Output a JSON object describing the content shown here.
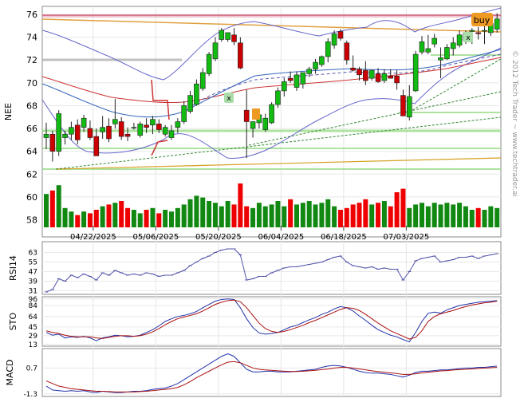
{
  "chart_data": {
    "type": "candlestick",
    "symbol": "NEE",
    "watermark": "© 2012 Tech Trader ~ www.techtrader.ai",
    "signal_label": "buy",
    "marker_label": "x",
    "price_axis": {
      "ticks": [
        "76",
        "74",
        "72",
        "70",
        "68",
        "66",
        "64",
        "62",
        "60",
        "58"
      ],
      "range": [
        56.5,
        76.7
      ]
    },
    "date_labels": [
      "04/22/2025",
      "05/06/2025",
      "05/20/2025",
      "06/04/2025",
      "06/18/2025",
      "07/03/2025"
    ],
    "date_positions": [
      7.5,
      17.5,
      27.5,
      37.5,
      47.5,
      57.5
    ],
    "candles": [
      [
        65.2,
        66.5,
        64.2,
        65.5
      ],
      [
        65.5,
        65.8,
        63.1,
        64.0
      ],
      [
        64.0,
        67.6,
        63.6,
        67.3
      ],
      [
        65.2,
        65.8,
        64.6,
        65.5
      ],
      [
        65.5,
        66.6,
        65.0,
        66.1
      ],
      [
        66.3,
        66.8,
        64.6,
        65.0
      ],
      [
        66.1,
        67.2,
        65.7,
        66.9
      ],
      [
        66.0,
        66.7,
        65.0,
        65.2
      ],
      [
        65.3,
        66.0,
        63.6,
        63.6
      ],
      [
        65.7,
        67.1,
        65.1,
        66.1
      ],
      [
        66.2,
        66.9,
        64.8,
        65.1
      ],
      [
        66.4,
        68.6,
        66.0,
        66.8
      ],
      [
        66.6,
        67.0,
        65.0,
        65.3
      ],
      [
        65.5,
        66.1,
        64.9,
        65.3
      ],
      [
        66.1,
        66.5,
        65.9,
        66.1
      ],
      [
        65.4,
        66.6,
        65.2,
        66.4
      ],
      [
        66.3,
        66.9,
        65.6,
        66.1
      ],
      [
        66.3,
        67.1,
        65.5,
        66.8
      ],
      [
        66.4,
        66.8,
        65.6,
        65.9
      ],
      [
        65.5,
        66.3,
        65.3,
        66.1
      ],
      [
        65.2,
        66.3,
        65.0,
        65.8
      ],
      [
        66.1,
        66.9,
        65.6,
        66.6
      ],
      [
        66.6,
        68.4,
        66.4,
        68.0
      ],
      [
        67.5,
        69.3,
        67.3,
        68.9
      ],
      [
        68.1,
        70.3,
        68.0,
        69.9
      ],
      [
        69.5,
        71.3,
        69.3,
        70.9
      ],
      [
        70.8,
        72.7,
        70.6,
        72.5
      ],
      [
        72.1,
        74.0,
        71.9,
        73.5
      ],
      [
        73.8,
        74.8,
        73.6,
        74.6
      ],
      [
        73.8,
        74.4,
        73.6,
        74.4
      ],
      [
        74.2,
        74.8,
        73.3,
        73.6
      ],
      [
        73.5,
        74.0,
        71.2,
        71.3
      ],
      [
        67.6,
        69.4,
        63.4,
        66.6
      ],
      [
        66.0,
        66.5,
        65.2,
        66.6
      ],
      [
        66.5,
        67.3,
        66.0,
        67.2
      ],
      [
        65.9,
        67.3,
        65.7,
        66.9
      ],
      [
        66.5,
        68.3,
        66.4,
        68.1
      ],
      [
        68.1,
        69.6,
        67.8,
        69.3
      ],
      [
        69.3,
        70.4,
        68.8,
        70.1
      ],
      [
        70.4,
        71.0,
        70.0,
        70.2
      ],
      [
        69.6,
        71.0,
        69.3,
        70.7
      ],
      [
        69.9,
        70.9,
        69.5,
        70.9
      ],
      [
        70.8,
        71.4,
        70.5,
        71.2
      ],
      [
        71.2,
        72.1,
        70.8,
        71.8
      ],
      [
        71.6,
        72.4,
        71.4,
        72.3
      ],
      [
        72.3,
        73.9,
        71.8,
        73.6
      ],
      [
        73.3,
        74.6,
        73.0,
        74.3
      ],
      [
        74.5,
        74.7,
        73.7,
        73.9
      ],
      [
        73.5,
        73.7,
        71.6,
        72.0
      ],
      [
        71.3,
        72.4,
        71.0,
        71.1
      ],
      [
        71.2,
        71.4,
        70.2,
        70.7
      ],
      [
        71.1,
        71.9,
        69.8,
        70.2
      ],
      [
        70.4,
        71.1,
        70.2,
        71.1
      ],
      [
        70.8,
        71.3,
        70.0,
        70.1
      ],
      [
        70.2,
        71.2,
        70.0,
        70.8
      ],
      [
        70.6,
        71.2,
        70.4,
        70.4
      ],
      [
        70.6,
        71.1,
        69.4,
        70.0
      ],
      [
        68.9,
        69.4,
        67.1,
        67.1
      ],
      [
        67.0,
        69.8,
        66.7,
        68.8
      ],
      [
        69.3,
        72.8,
        69.2,
        72.5
      ],
      [
        72.7,
        74.1,
        72.5,
        73.6
      ],
      [
        72.7,
        74.2,
        72.5,
        73.0
      ],
      [
        73.4,
        74.3,
        73.1,
        73.9
      ],
      [
        72.0,
        73.1,
        70.4,
        72.2
      ],
      [
        72.1,
        73.4,
        72.0,
        73.1
      ],
      [
        73.0,
        74.0,
        72.4,
        73.5
      ],
      [
        73.3,
        74.6,
        73.1,
        74.2
      ],
      [
        73.7,
        74.6,
        73.4,
        74.4
      ],
      [
        74.5,
        74.8,
        73.4,
        74.6
      ],
      [
        74.4,
        74.9,
        73.8,
        74.3
      ],
      [
        74.6,
        75.3,
        73.4,
        74.6
      ],
      [
        74.4,
        75.8,
        74.1,
        75.2
      ],
      [
        74.7,
        76.1,
        74.4,
        75.6
      ]
    ],
    "volume": [
      1.9,
      2.1,
      2.4,
      1.1,
      0.9,
      0.7,
      0.9,
      0.8,
      1.0,
      1.2,
      1.3,
      1.4,
      1.5,
      1.1,
      1.0,
      0.8,
      1.0,
      1.1,
      0.8,
      1.0,
      0.9,
      1.1,
      1.3,
      1.6,
      1.8,
      1.7,
      1.5,
      1.4,
      1.2,
      1.5,
      1.3,
      2.5,
      1.2,
      1.1,
      1.4,
      1.2,
      1.3,
      1.5,
      1.2,
      1.6,
      1.3,
      1.4,
      1.5,
      1.3,
      1.4,
      1.6,
      1.2,
      1.0,
      1.1,
      1.3,
      1.4,
      1.6,
      1.3,
      1.4,
      1.5,
      1.2,
      2.0,
      2.2,
      1.1,
      1.3,
      1.4,
      1.2,
      1.4,
      1.3,
      1.4,
      1.3,
      1.4,
      1.2,
      1.0,
      1.1,
      1.0,
      1.2,
      1.1
    ],
    "rsi": {
      "label": "RSI14",
      "ticks": [
        "63",
        "55",
        "47",
        "39",
        "31"
      ],
      "range": [
        28,
        72
      ],
      "values": [
        30,
        32,
        41,
        39,
        44,
        42,
        45,
        43,
        40,
        46,
        44,
        48,
        46,
        44,
        45,
        44,
        46,
        45,
        43,
        44,
        44,
        46,
        48,
        52,
        55,
        58,
        60,
        63,
        65,
        66,
        66,
        61,
        40,
        41,
        43,
        43,
        46,
        48,
        50,
        51,
        51,
        52,
        53,
        54,
        55,
        57,
        59,
        60,
        55,
        52,
        51,
        50,
        51,
        49,
        50,
        49,
        49,
        40,
        47,
        56,
        58,
        59,
        60,
        55,
        56,
        57,
        59,
        59,
        60,
        58,
        60,
        61,
        62
      ]
    },
    "sto": {
      "label": "STO",
      "ticks": [
        "96",
        "84",
        "64",
        "45",
        "29",
        "13"
      ],
      "range": [
        10,
        100
      ],
      "k": [
        35,
        30,
        32,
        25,
        27,
        26,
        28,
        25,
        20,
        25,
        27,
        30,
        29,
        27,
        28,
        30,
        35,
        40,
        47,
        55,
        60,
        64,
        66,
        69,
        73,
        80,
        86,
        92,
        95,
        96,
        95,
        80,
        60,
        44,
        34,
        32,
        33,
        35,
        40,
        45,
        48,
        53,
        58,
        62,
        68,
        72,
        78,
        82,
        80,
        74,
        65,
        57,
        48,
        40,
        35,
        30,
        27,
        22,
        18,
        35,
        55,
        70,
        72,
        70,
        76,
        80,
        84,
        86,
        88,
        90,
        91,
        92,
        93
      ],
      "d": [
        38,
        35,
        33,
        30,
        28,
        27,
        27,
        27,
        25,
        24,
        26,
        28,
        29,
        29,
        28,
        29,
        32,
        36,
        42,
        49,
        55,
        60,
        63,
        66,
        69,
        74,
        80,
        86,
        90,
        93,
        94,
        91,
        80,
        66,
        52,
        42,
        37,
        35,
        37,
        40,
        44,
        48,
        53,
        57,
        62,
        67,
        72,
        77,
        80,
        79,
        75,
        68,
        60,
        52,
        45,
        38,
        33,
        28,
        23,
        26,
        38,
        55,
        64,
        69,
        72,
        75,
        79,
        82,
        85,
        87,
        89,
        90,
        92
      ]
    },
    "macd": {
      "label": "MACD",
      "ticks": [
        "0.7",
        "-1.3"
      ],
      "range": [
        -1.5,
        2.2
      ],
      "line": [
        -0.7,
        -1.0,
        -1.05,
        -1.1,
        -1.05,
        -1.1,
        -1.05,
        -1.15,
        -1.2,
        -1.1,
        -1.15,
        -1.2,
        -1.2,
        -1.15,
        -1.1,
        -1.1,
        -1.05,
        -0.95,
        -0.9,
        -0.85,
        -0.7,
        -0.5,
        -0.2,
        0.1,
        0.4,
        0.7,
        1.0,
        1.3,
        1.6,
        1.8,
        1.6,
        1.1,
        0.6,
        0.4,
        0.4,
        0.45,
        0.45,
        0.4,
        0.4,
        0.4,
        0.45,
        0.5,
        0.55,
        0.6,
        0.75,
        0.85,
        0.9,
        0.85,
        0.75,
        0.6,
        0.45,
        0.35,
        0.3,
        0.3,
        0.25,
        0.2,
        0.1,
        0.0,
        0.15,
        0.35,
        0.45,
        0.45,
        0.5,
        0.55,
        0.55,
        0.6,
        0.65,
        0.7,
        0.7,
        0.75,
        0.75,
        0.8,
        0.85
      ],
      "signal": [
        -0.3,
        -0.5,
        -0.7,
        -0.8,
        -0.9,
        -0.95,
        -1.0,
        -1.05,
        -1.1,
        -1.1,
        -1.12,
        -1.15,
        -1.15,
        -1.15,
        -1.15,
        -1.12,
        -1.1,
        -1.05,
        -1.0,
        -0.95,
        -0.9,
        -0.8,
        -0.6,
        -0.35,
        -0.05,
        0.2,
        0.45,
        0.7,
        0.95,
        1.15,
        1.2,
        1.1,
        0.9,
        0.7,
        0.6,
        0.55,
        0.52,
        0.48,
        0.45,
        0.43,
        0.43,
        0.45,
        0.48,
        0.52,
        0.57,
        0.62,
        0.7,
        0.74,
        0.74,
        0.7,
        0.63,
        0.56,
        0.48,
        0.42,
        0.37,
        0.32,
        0.27,
        0.2,
        0.2,
        0.25,
        0.32,
        0.37,
        0.42,
        0.47,
        0.5,
        0.54,
        0.57,
        0.6,
        0.63,
        0.66,
        0.69,
        0.72,
        0.75
      ]
    }
  }
}
